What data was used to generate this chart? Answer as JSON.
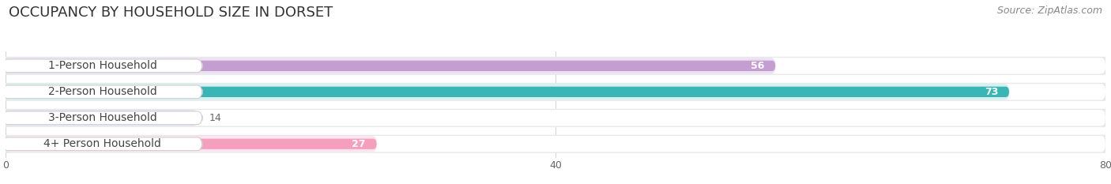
{
  "title": "OCCUPANCY BY HOUSEHOLD SIZE IN DORSET",
  "source": "Source: ZipAtlas.com",
  "categories": [
    "1-Person Household",
    "2-Person Household",
    "3-Person Household",
    "4+ Person Household"
  ],
  "values": [
    56,
    73,
    14,
    27
  ],
  "bar_colors": [
    "#c49ed0",
    "#3ab5b5",
    "#a8b4e8",
    "#f4a0bc"
  ],
  "background_colors": [
    "#ede0f5",
    "#d4f0f0",
    "#e0e4f8",
    "#fde4ee"
  ],
  "bar_bg_color": "#f0f0f0",
  "xlim": [
    0,
    80
  ],
  "xticks": [
    0,
    40,
    80
  ],
  "title_fontsize": 13,
  "source_fontsize": 9,
  "label_fontsize": 10,
  "value_fontsize": 9,
  "bar_height": 0.62,
  "fig_bg": "#ffffff"
}
